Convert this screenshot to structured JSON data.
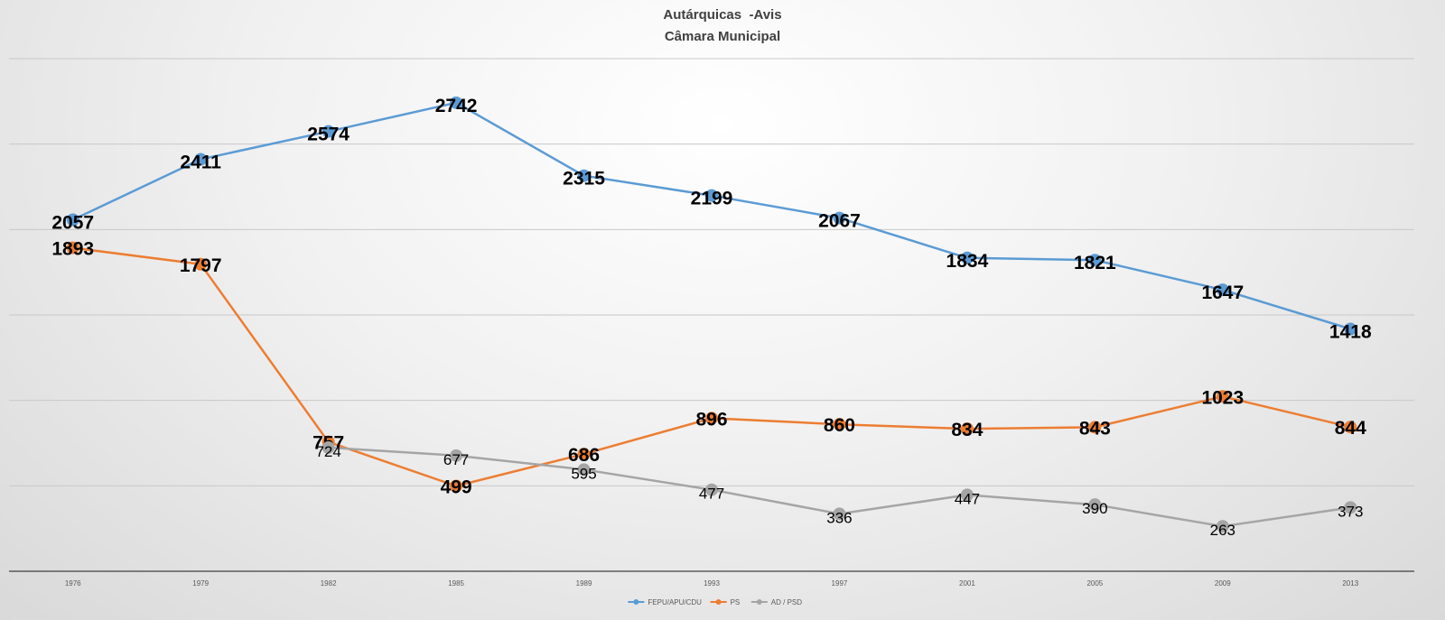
{
  "chart_data": {
    "type": "line",
    "title": "Autárquicas  -Avis",
    "subtitle": "Câmara Municipal",
    "categories": [
      "1976",
      "1979",
      "1982",
      "1985",
      "1989",
      "1993",
      "1997",
      "2001",
      "2005",
      "2009",
      "2013"
    ],
    "series": [
      {
        "name": "FEPU/APU/CDU",
        "color": "#5b9bd5",
        "values": [
          2057,
          2411,
          2574,
          2742,
          2315,
          2199,
          2067,
          1834,
          1821,
          1647,
          1418
        ]
      },
      {
        "name": "PS",
        "color": "#ed7d31",
        "values": [
          1893,
          1797,
          757,
          499,
          686,
          896,
          860,
          834,
          843,
          1023,
          844
        ]
      },
      {
        "name": "AD / PSD",
        "color": "#a5a5a5",
        "values": [
          null,
          null,
          724,
          677,
          595,
          477,
          336,
          447,
          390,
          263,
          373
        ]
      }
    ],
    "ylim": [
      0,
      3000
    ],
    "grid": true,
    "legend_position": "bottom"
  }
}
